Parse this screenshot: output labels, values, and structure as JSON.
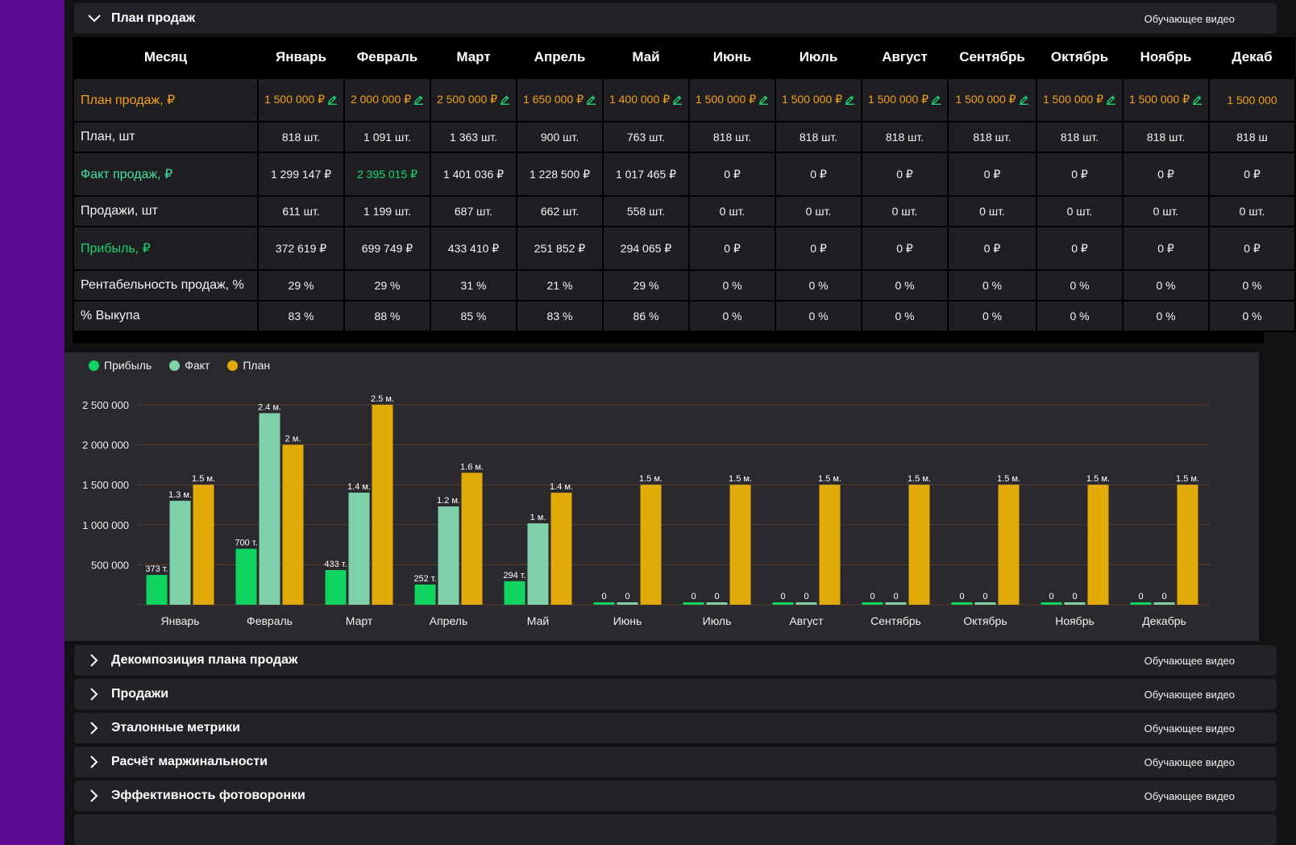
{
  "sections": {
    "top": {
      "title": "План продаж",
      "video_label": "Обучающее видео"
    },
    "collapsed": [
      {
        "title": "Декомпозиция плана продаж",
        "video_label": "Обучающее видео"
      },
      {
        "title": "Продажи",
        "video_label": "Обучающее видео"
      },
      {
        "title": "Эталонные метрики",
        "video_label": "Обучающее видео"
      },
      {
        "title": "Расчёт маржинальности",
        "video_label": "Обучающее видео"
      },
      {
        "title": "Эффективность фотоворонки",
        "video_label": "Обучающее видео"
      }
    ]
  },
  "table": {
    "month_header": "Месяц",
    "months": [
      "Январь",
      "Февраль",
      "Март",
      "Апрель",
      "Май",
      "Июнь",
      "Июль",
      "Август",
      "Сентябрь",
      "Октябрь",
      "Ноябрь",
      "Декаб"
    ],
    "rows": [
      {
        "label": "План продаж, ₽",
        "style": "orange",
        "editable": true,
        "values": [
          "1 500 000 ₽",
          "2 000 000 ₽",
          "2 500 000 ₽",
          "1 650 000 ₽",
          "1 400 000 ₽",
          "1 500 000 ₽",
          "1 500 000 ₽",
          "1 500 000 ₽",
          "1 500 000 ₽",
          "1 500 000 ₽",
          "1 500 000 ₽",
          "1 500 000"
        ]
      },
      {
        "label": "План, шт",
        "style": "",
        "values": [
          "818 шт.",
          "1 091 шт.",
          "1 363 шт.",
          "900 шт.",
          "763 шт.",
          "818 шт.",
          "818 шт.",
          "818 шт.",
          "818 шт.",
          "818 шт.",
          "818 шт.",
          "818 ш"
        ]
      },
      {
        "label": "Факт продаж, ₽",
        "style": "mint",
        "values": [
          "1 299 147 ₽",
          "2 395 015 ₽",
          "1 401 036 ₽",
          "1 228 500 ₽",
          "1 017 465 ₽",
          "0 ₽",
          "0 ₽",
          "0 ₽",
          "0 ₽",
          "0 ₽",
          "0 ₽",
          "0 ₽"
        ],
        "value_colors": [
          "",
          "green",
          "",
          "",
          "",
          "",
          "",
          "",
          "",
          "",
          "",
          ""
        ]
      },
      {
        "label": "Продажи, шт",
        "style": "",
        "values": [
          "611 шт.",
          "1 199 шт.",
          "687 шт.",
          "662 шт.",
          "558 шт.",
          "0 шт.",
          "0 шт.",
          "0 шт.",
          "0 шт.",
          "0 шт.",
          "0 шт.",
          "0 шт."
        ]
      },
      {
        "label": "Прибыль, ₽",
        "style": "green",
        "values": [
          "372 619 ₽",
          "699 749 ₽",
          "433 410 ₽",
          "251 852 ₽",
          "294 065 ₽",
          "0 ₽",
          "0 ₽",
          "0 ₽",
          "0 ₽",
          "0 ₽",
          "0 ₽",
          "0 ₽"
        ]
      },
      {
        "label": "Рентабельность продаж, %",
        "style": "",
        "values": [
          "29 %",
          "29 %",
          "31 %",
          "21 %",
          "29 %",
          "0 %",
          "0 %",
          "0 %",
          "0 %",
          "0 %",
          "0 %",
          "0 %"
        ]
      },
      {
        "label": "% Выкупа",
        "style": "",
        "values": [
          "83 %",
          "88 %",
          "85 %",
          "83 %",
          "86 %",
          "0 %",
          "0 %",
          "0 %",
          "0 %",
          "0 %",
          "0 %",
          "0 %"
        ]
      }
    ]
  },
  "chart_data": {
    "type": "bar",
    "categories": [
      "Январь",
      "Февраль",
      "Март",
      "Апрель",
      "Май",
      "Июнь",
      "Июль",
      "Август",
      "Сентябрь",
      "Октябрь",
      "Ноябрь",
      "Декабрь"
    ],
    "series": [
      {
        "name": "Прибыль",
        "color": "#0fd460",
        "values": [
          372619,
          699749,
          433410,
          251852,
          294065,
          0,
          0,
          0,
          0,
          0,
          0,
          0
        ],
        "labels": [
          "373 т.",
          "700 т.",
          "433 т.",
          "252 т.",
          "294 т.",
          "0",
          "0",
          "0",
          "0",
          "0",
          "0",
          "0"
        ]
      },
      {
        "name": "Факт",
        "color": "#7fd1a9",
        "values": [
          1299147,
          2395015,
          1401036,
          1228500,
          1017465,
          0,
          0,
          0,
          0,
          0,
          0,
          0
        ],
        "labels": [
          "1.3 м.",
          "2.4 м.",
          "1.4 м.",
          "1.2 м.",
          "1 м.",
          "0",
          "0",
          "0",
          "0",
          "0",
          "0",
          "0"
        ]
      },
      {
        "name": "План",
        "color": "#e2aa06",
        "values": [
          1500000,
          2000000,
          2500000,
          1650000,
          1400000,
          1500000,
          1500000,
          1500000,
          1500000,
          1500000,
          1500000,
          1500000
        ],
        "labels": [
          "1.5 м.",
          "2 м.",
          "2.5 м.",
          "1.6 м.",
          "1.4 м.",
          "1.5 м.",
          "1.5 м.",
          "1.5 м.",
          "1.5 м.",
          "1.5 м.",
          "1.5 м.",
          "1.5 м."
        ]
      }
    ],
    "yticks": [
      500000,
      1000000,
      1500000,
      2000000,
      2500000
    ],
    "ytick_labels": [
      "500 000",
      "1 000 000",
      "1 500 000",
      "2 000 000",
      "2 500 000"
    ],
    "ylim": [
      0,
      2500000
    ],
    "grid": true,
    "legend_position": "top-left"
  },
  "colors": {
    "sidebar": "#5a0a95",
    "plan": "#f5a01a",
    "fact": "#3ee0a0",
    "profit": "#18d56d"
  }
}
